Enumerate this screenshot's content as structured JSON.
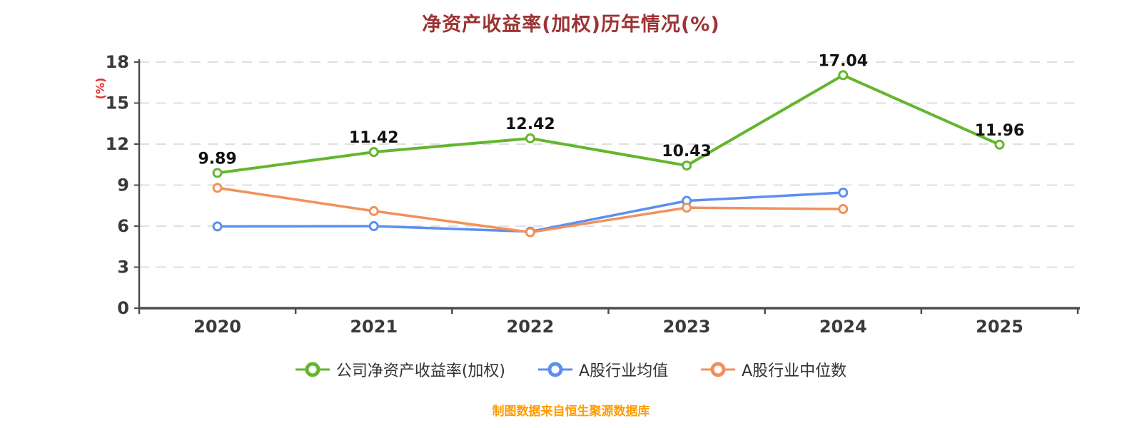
{
  "chart_data": {
    "type": "line",
    "title": "净资产收益率(加权)历年情况(%)",
    "ylabel": "(%)",
    "categories": [
      "2020",
      "2021",
      "2022",
      "2023",
      "2024",
      "2025"
    ],
    "series": [
      {
        "name": "公司净资产收益率(加权)",
        "color": "#63b62e",
        "values": [
          9.89,
          11.42,
          12.42,
          10.43,
          17.04,
          11.96
        ],
        "data_labels": [
          "9.89",
          "11.42",
          "12.42",
          "10.43",
          "17.04",
          "11.96"
        ],
        "show_labels": true
      },
      {
        "name": "A股行业均值",
        "color": "#5b8ff0",
        "values": [
          5.98,
          6.0,
          5.6,
          7.85,
          8.45,
          null
        ],
        "show_labels": false
      },
      {
        "name": "A股行业中位数",
        "color": "#f0915c",
        "values": [
          8.8,
          7.1,
          5.55,
          7.35,
          7.25,
          null
        ],
        "show_labels": false
      }
    ],
    "ylim": [
      0,
      18
    ],
    "yticks": [
      0,
      3,
      6,
      9,
      12,
      15,
      18
    ],
    "grid": "horizontal-dashed",
    "legend_position": "bottom"
  },
  "footer": "制图数据来自恒生聚源数据库",
  "colors": {
    "title": "#9d3333",
    "ylabel": "#e03131",
    "axis": "#4d4d4d",
    "tick_label": "#3a3a3a",
    "gridline": "#dfdfdf",
    "data_label": "#111111",
    "footer": "#ff9c00"
  }
}
